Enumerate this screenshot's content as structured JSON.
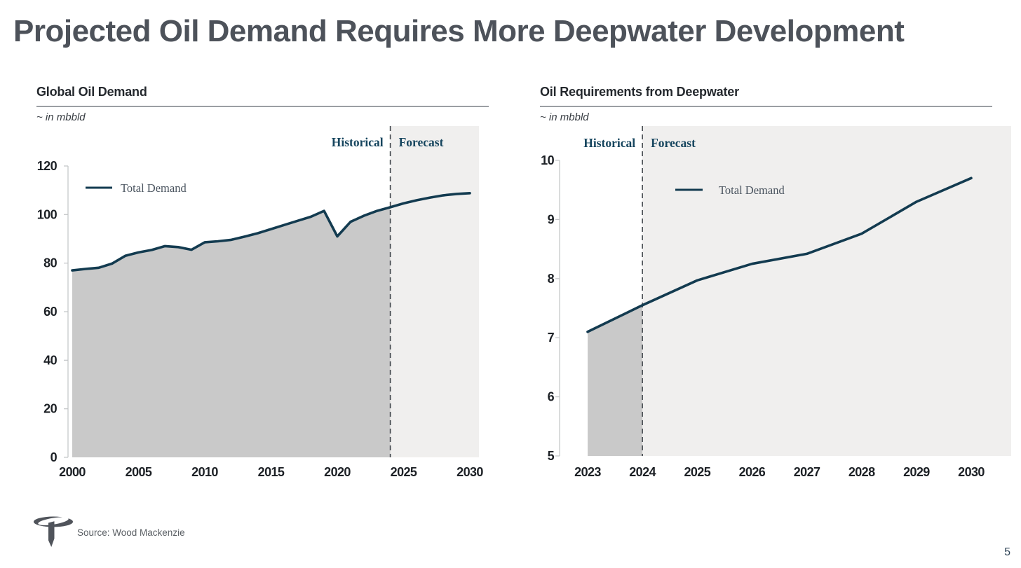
{
  "slide": {
    "title": "Projected Oil Demand Requires More Deepwater Development",
    "source_note": "Source: Wood Mackenzie",
    "page_number": "5",
    "logo": "transocean-mark"
  },
  "colors": {
    "line": "#133b50",
    "historical_fill": "#c9c9c9",
    "forecast_band": "#f0efee",
    "divider_dash": "#41464c",
    "phase_label": "#16455e",
    "axis": "#c2c4c6",
    "tick_label": "#1c2025",
    "legend_text": "#4a545f",
    "logo": "#50545b"
  },
  "chart_data": [
    {
      "type": "area",
      "title": "Global Oil Demand",
      "unit_label": "~ in mbbld",
      "phase_labels": {
        "historical": "Historical",
        "forecast": "Forecast"
      },
      "forecast_start_x": 2024,
      "x": [
        2000,
        2001,
        2002,
        2003,
        2004,
        2005,
        2006,
        2007,
        2008,
        2009,
        2010,
        2011,
        2012,
        2013,
        2014,
        2015,
        2016,
        2017,
        2018,
        2019,
        2020,
        2021,
        2022,
        2023,
        2024,
        2025,
        2026,
        2027,
        2028,
        2029,
        2030
      ],
      "series": [
        {
          "name": "Total Demand",
          "values": [
            77,
            77.6,
            78.1,
            79.8,
            83,
            84.4,
            85.4,
            87,
            86.6,
            85.5,
            88.6,
            89,
            89.6,
            90.9,
            92.3,
            94,
            95.7,
            97.4,
            99.1,
            101.5,
            91,
            97,
            99.5,
            101.5,
            103,
            104.6,
            105.9,
            107,
            107.9,
            108.5,
            108.8
          ]
        }
      ],
      "xticks": [
        2000,
        2005,
        2010,
        2015,
        2020,
        2025,
        2030
      ],
      "yticks": [
        0,
        20,
        40,
        60,
        80,
        100,
        120
      ],
      "ylim": [
        0,
        120
      ],
      "legend_position": "top-left-inside",
      "grid": "off"
    },
    {
      "type": "line",
      "title": "Oil Requirements from Deepwater",
      "unit_label": "~ in mbbld",
      "phase_labels": {
        "historical": "Historical",
        "forecast": "Forecast"
      },
      "forecast_start_x": 2024,
      "x": [
        2023,
        2024,
        2025,
        2026,
        2027,
        2028,
        2029,
        2030
      ],
      "series": [
        {
          "name": "Total Demand",
          "values": [
            7.1,
            7.55,
            7.97,
            8.25,
            8.42,
            8.76,
            9.3,
            9.7
          ]
        }
      ],
      "xticks": [
        2023,
        2024,
        2025,
        2026,
        2027,
        2028,
        2029,
        2030
      ],
      "yticks": [
        5,
        6,
        7,
        8,
        9,
        10
      ],
      "ylim": [
        5,
        10
      ],
      "legend_position": "top-inside",
      "grid": "off"
    }
  ]
}
